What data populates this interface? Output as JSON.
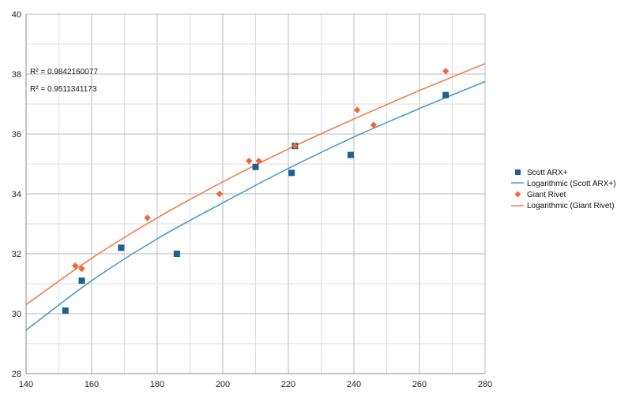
{
  "chart_data": {
    "type": "scatter",
    "title": "",
    "xlabel": "",
    "ylabel": "",
    "xlim": [
      140,
      280
    ],
    "ylim": [
      28,
      40
    ],
    "x_ticks": [
      140,
      160,
      180,
      200,
      220,
      240,
      260,
      280
    ],
    "y_ticks": [
      28,
      30,
      32,
      34,
      36,
      38,
      40
    ],
    "x_tick_labels": [
      "140",
      "160",
      "180",
      "200",
      "220",
      "240",
      "260",
      "280"
    ],
    "y_tick_labels": [
      "28",
      "30",
      "32",
      "34",
      "36",
      "38",
      "40"
    ],
    "grid": true,
    "legend_position": "right",
    "series": [
      {
        "name": "Scott ARX+",
        "marker": "square",
        "color": "#1f5f8b",
        "points": [
          [
            152,
            30.1
          ],
          [
            157,
            31.1
          ],
          [
            169,
            32.2
          ],
          [
            186,
            32.0
          ],
          [
            210,
            34.9
          ],
          [
            221,
            34.7
          ],
          [
            222,
            35.6
          ],
          [
            239,
            35.3
          ],
          [
            268,
            37.3
          ]
        ]
      },
      {
        "name": "Giant Rivet",
        "marker": "diamond",
        "color": "#f0683a",
        "points": [
          [
            155,
            31.6
          ],
          [
            157,
            31.5
          ],
          [
            177,
            33.2
          ],
          [
            199,
            34.0
          ],
          [
            208,
            35.1
          ],
          [
            211,
            35.1
          ],
          [
            222,
            35.6
          ],
          [
            241,
            36.8
          ],
          [
            246,
            36.3
          ],
          [
            268,
            38.1
          ]
        ]
      }
    ],
    "trendlines": [
      {
        "name": "Logarithmic (Scott ARX+)",
        "type": "logarithmic",
        "color": "#4a9bc7",
        "r_squared_label": "R² = 0.9842160077",
        "curve": [
          [
            140,
            29.45
          ],
          [
            160,
            31.1
          ],
          [
            180,
            32.5
          ],
          [
            200,
            33.7
          ],
          [
            220,
            34.85
          ],
          [
            240,
            35.9
          ],
          [
            260,
            36.85
          ],
          [
            280,
            37.75
          ]
        ]
      },
      {
        "name": "Logarithmic (Giant Rivet)",
        "type": "logarithmic",
        "color": "#f0804f",
        "r_squared_label": "R² = 0.9511341173",
        "curve": [
          [
            140,
            30.3
          ],
          [
            160,
            31.85
          ],
          [
            180,
            33.2
          ],
          [
            200,
            34.4
          ],
          [
            220,
            35.5
          ],
          [
            240,
            36.5
          ],
          [
            260,
            37.45
          ],
          [
            280,
            38.35
          ]
        ]
      }
    ],
    "legend": [
      "Scott ARX+",
      "Logarithmic (Scott ARX+)",
      "Giant Rivet",
      "Logarithmic (Giant Rivet)"
    ]
  }
}
